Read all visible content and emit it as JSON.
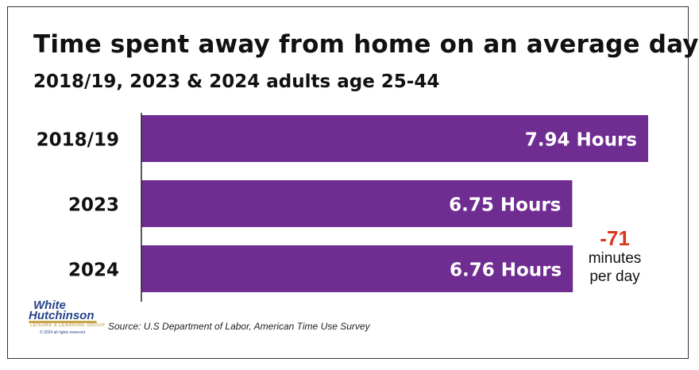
{
  "chart_data": {
    "type": "bar",
    "orientation": "horizontal",
    "title": "Time spent away from home on an average day",
    "subtitle": "2018/19, 2023 & 2024 adults age 25-44",
    "categories": [
      "2018/19",
      "2023",
      "2024"
    ],
    "values": [
      7.94,
      6.75,
      6.76
    ],
    "data_labels": [
      "7.94 Hours",
      "6.75 Hours",
      "6.76 Hours"
    ],
    "bar_color": "#6f2c91",
    "label_color": "#ffffff",
    "xlim": [
      0,
      7.94
    ],
    "grid": false,
    "annotation": {
      "value": "-71",
      "line1": "minutes",
      "line2": "per day",
      "color": "#d9371e"
    }
  },
  "logo": {
    "line1": "White",
    "line2": "Hutchinson",
    "tagline": "LEISURE & LEARNING GROUP",
    "copyright": "© 2024 all rights reserved"
  },
  "source": "Source: U.S Department of Labor, American Time Use Survey"
}
